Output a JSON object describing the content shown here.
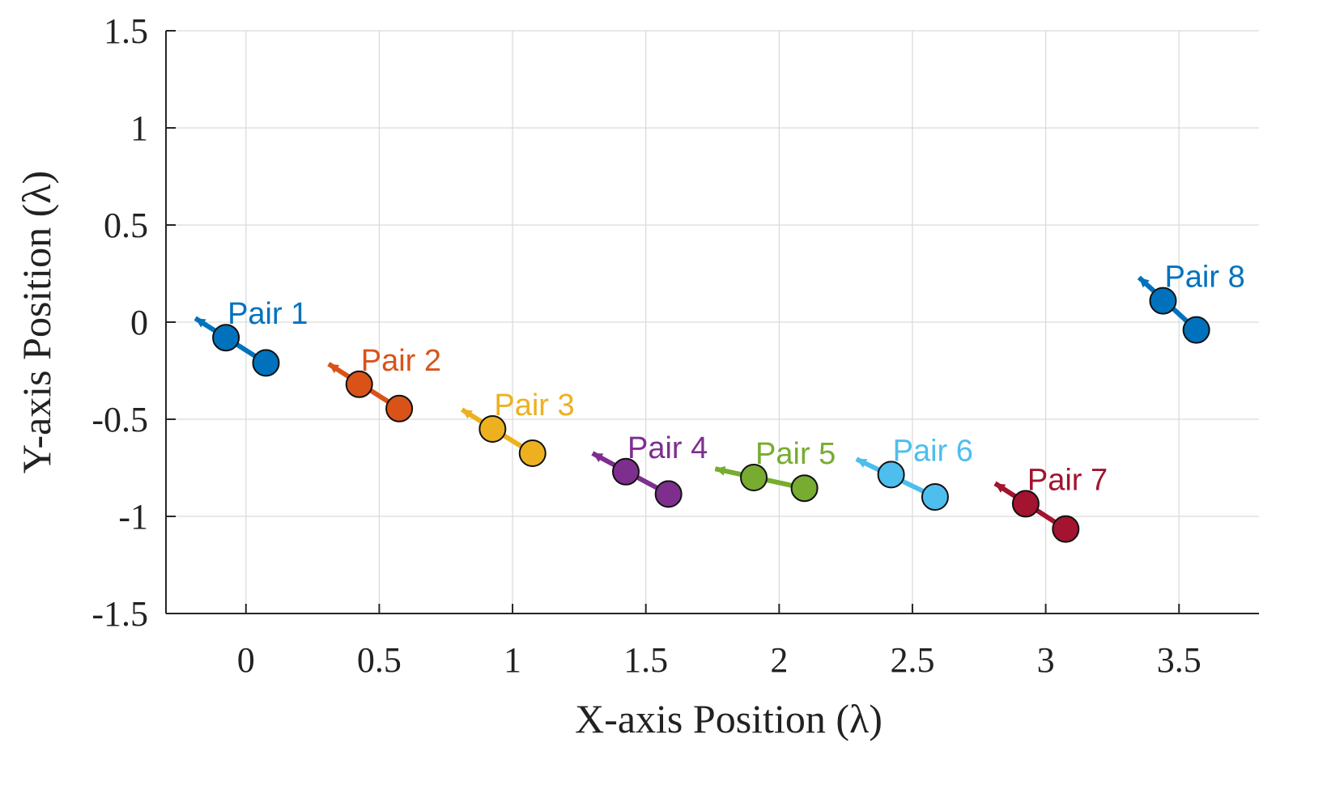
{
  "chart_data": {
    "type": "scatter",
    "title": "",
    "xlabel": "X-axis Position (λ)",
    "ylabel": "Y-axis Position (λ)",
    "xlim": [
      -0.3,
      3.8
    ],
    "ylim": [
      -1.5,
      1.5
    ],
    "xticks": [
      0,
      0.5,
      1,
      1.5,
      2,
      2.5,
      3,
      3.5
    ],
    "xtick_labels": [
      "0",
      "0.5",
      "1",
      "1.5",
      "2",
      "2.5",
      "3",
      "3.5"
    ],
    "yticks": [
      1.5,
      1,
      0.5,
      0,
      -0.5,
      -1,
      -1.5
    ],
    "ytick_labels": [
      "1.5",
      "1",
      "0.5",
      "0",
      "-0.5",
      "-1",
      "-1.5"
    ],
    "grid": true,
    "series": [
      {
        "name": "Pair 1",
        "color": "#0072BD",
        "points": [
          [
            -0.075,
            -0.08
          ],
          [
            0.075,
            -0.21
          ]
        ],
        "arrow_tip": [
          -0.19,
          0.02
        ]
      },
      {
        "name": "Pair 2",
        "color": "#D95319",
        "points": [
          [
            0.425,
            -0.32
          ],
          [
            0.575,
            -0.445
          ]
        ],
        "arrow_tip": [
          0.31,
          -0.215
        ]
      },
      {
        "name": "Pair 3",
        "color": "#EDB120",
        "points": [
          [
            0.925,
            -0.55
          ],
          [
            1.075,
            -0.675
          ]
        ],
        "arrow_tip": [
          0.81,
          -0.45
        ]
      },
      {
        "name": "Pair 4",
        "color": "#7E2F8E",
        "points": [
          [
            1.425,
            -0.77
          ],
          [
            1.585,
            -0.885
          ]
        ],
        "arrow_tip": [
          1.3,
          -0.675
        ]
      },
      {
        "name": "Pair 5",
        "color": "#77AC30",
        "points": [
          [
            1.905,
            -0.8
          ],
          [
            2.095,
            -0.855
          ]
        ],
        "arrow_tip": [
          1.76,
          -0.755
        ]
      },
      {
        "name": "Pair 6",
        "color": "#4DBEEE",
        "points": [
          [
            2.42,
            -0.785
          ],
          [
            2.585,
            -0.9
          ]
        ],
        "arrow_tip": [
          2.29,
          -0.705
        ]
      },
      {
        "name": "Pair 7",
        "color": "#A2142F",
        "points": [
          [
            2.925,
            -0.935
          ],
          [
            3.075,
            -1.065
          ]
        ],
        "arrow_tip": [
          2.81,
          -0.83
        ]
      },
      {
        "name": "Pair 8",
        "color": "#0072BD",
        "points": [
          [
            3.44,
            0.11
          ],
          [
            3.565,
            -0.04
          ]
        ],
        "arrow_tip": [
          3.35,
          0.23
        ]
      }
    ]
  }
}
